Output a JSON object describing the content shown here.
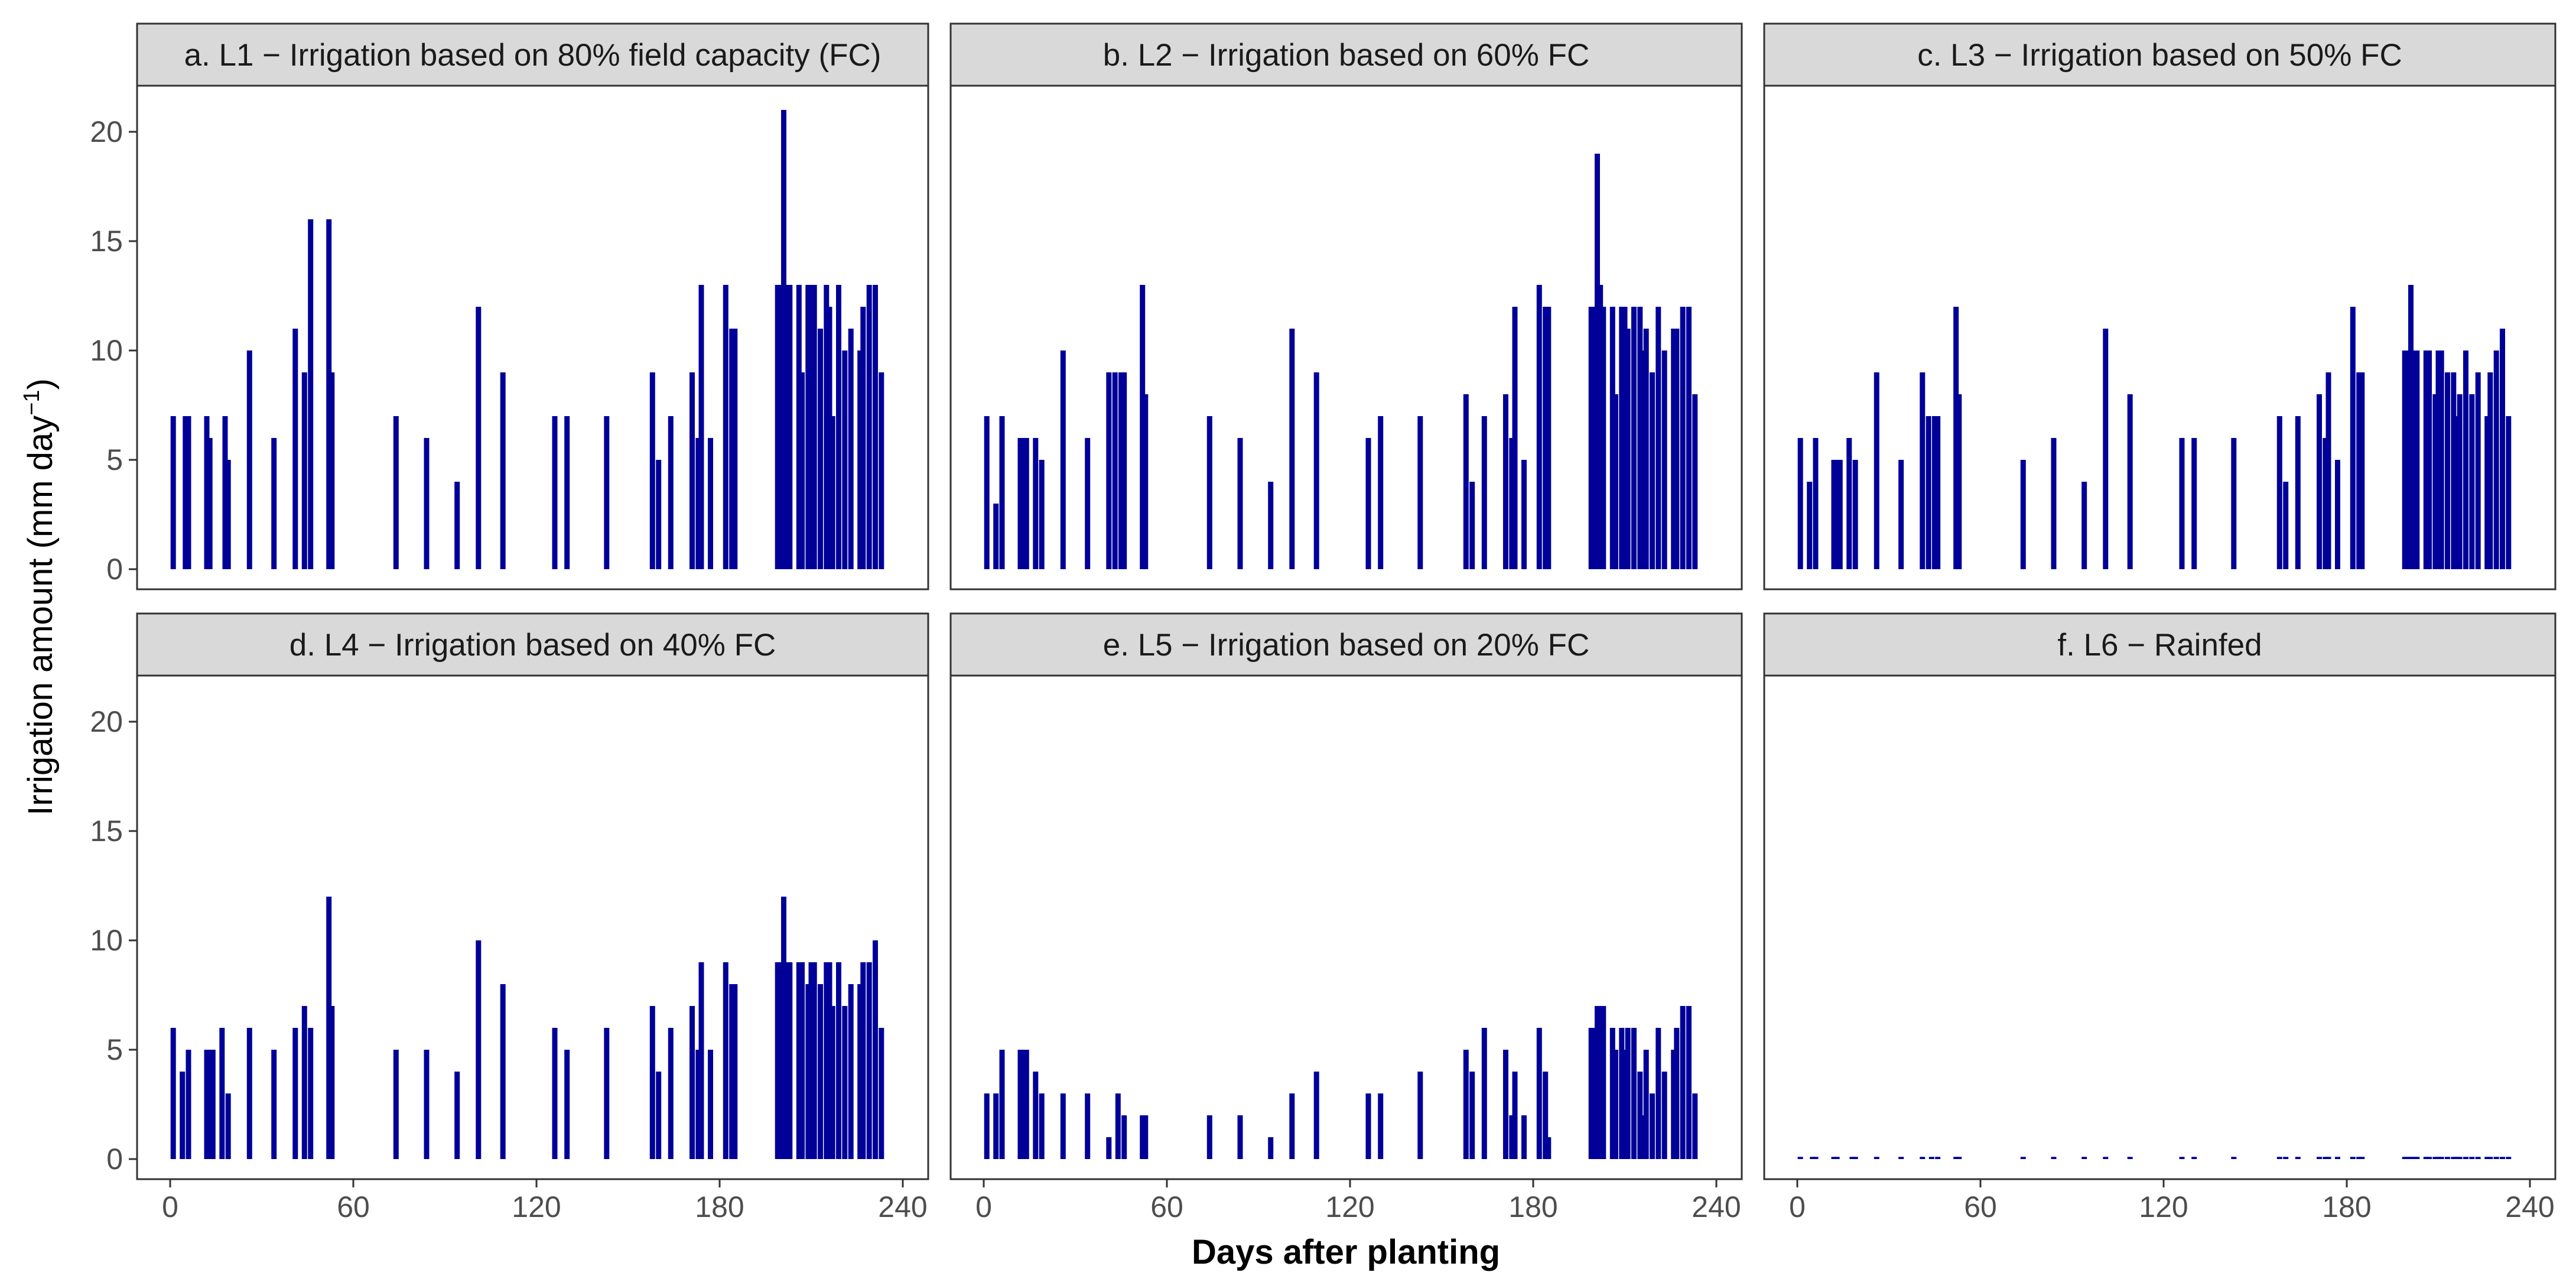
{
  "chart_data": {
    "type": "bar",
    "layout": "facet-grid 2x3",
    "xlabel": "Days after planting",
    "ylabel": "Irrigation amount (mm day",
    "ylabel_sup": "−1",
    "ylabel_end": ")",
    "xlim": [
      -7,
      245
    ],
    "ylim": [
      -1,
      22
    ],
    "xticks": [
      "0",
      "60",
      "120",
      "180",
      "240"
    ],
    "yticks": [
      "0",
      "5",
      "10",
      "15",
      "20"
    ],
    "bar_color": "#000099",
    "strip_fill": "#d9d9d9",
    "panels": [
      {
        "title": "a. L1 − Irrigation based on 80% field capacity (FC)",
        "days": [
          1,
          5,
          6,
          12,
          13,
          18,
          19,
          26,
          34,
          41,
          44,
          46,
          52,
          53,
          74,
          84,
          94,
          101,
          109,
          126,
          130,
          143,
          158,
          160,
          164,
          171,
          173,
          174,
          177,
          182,
          184,
          185,
          199,
          200,
          201,
          202,
          203,
          206,
          207,
          209,
          210,
          211,
          213,
          215,
          216,
          217,
          219,
          221,
          223,
          226,
          227,
          229,
          231,
          233
        ],
        "values": [
          7,
          7,
          7,
          7,
          6,
          7,
          5,
          10,
          6,
          11,
          9,
          16,
          16,
          9,
          7,
          6,
          4,
          12,
          9,
          7,
          7,
          7,
          9,
          5,
          7,
          9,
          6,
          13,
          6,
          13,
          11,
          11,
          13,
          13,
          21,
          13,
          13,
          13,
          9,
          13,
          13,
          13,
          11,
          13,
          12,
          7,
          13,
          10,
          11,
          10,
          12,
          13,
          13,
          9
        ]
      },
      {
        "title": "b. L2 − Irrigation based on 60% FC",
        "days": [
          1,
          4,
          6,
          12,
          13,
          14,
          17,
          19,
          26,
          34,
          41,
          43,
          45,
          46,
          52,
          53,
          74,
          84,
          94,
          101,
          109,
          126,
          130,
          143,
          158,
          160,
          164,
          171,
          173,
          174,
          177,
          182,
          184,
          185,
          199,
          200,
          201,
          202,
          203,
          206,
          207,
          209,
          210,
          211,
          213,
          215,
          216,
          217,
          219,
          221,
          223,
          226,
          227,
          229,
          231,
          233
        ],
        "values": [
          7,
          3,
          7,
          6,
          6,
          6,
          6,
          5,
          10,
          6,
          9,
          9,
          9,
          9,
          13,
          8,
          7,
          6,
          4,
          11,
          9,
          6,
          7,
          7,
          8,
          4,
          7,
          8,
          6,
          12,
          5,
          13,
          12,
          12,
          12,
          12,
          19,
          13,
          12,
          12,
          8,
          12,
          12,
          11,
          12,
          12,
          10,
          11,
          9,
          12,
          10,
          11,
          11,
          12,
          12,
          8
        ]
      },
      {
        "title": "c. L3 − Irrigation based on 50% FC",
        "days": [
          1,
          4,
          6,
          12,
          13,
          14,
          17,
          19,
          26,
          34,
          41,
          43,
          45,
          46,
          52,
          53,
          74,
          84,
          94,
          101,
          109,
          126,
          130,
          143,
          158,
          160,
          164,
          171,
          173,
          174,
          177,
          182,
          184,
          185,
          199,
          200,
          201,
          202,
          203,
          206,
          207,
          209,
          210,
          211,
          213,
          215,
          216,
          217,
          219,
          221,
          223,
          226,
          227,
          229,
          231,
          233
        ],
        "values": [
          6,
          4,
          6,
          5,
          5,
          5,
          6,
          5,
          9,
          5,
          9,
          7,
          7,
          7,
          12,
          8,
          5,
          6,
          4,
          11,
          8,
          6,
          6,
          6,
          7,
          4,
          7,
          8,
          6,
          9,
          5,
          12,
          9,
          9,
          10,
          10,
          13,
          10,
          10,
          10,
          10,
          8,
          10,
          10,
          9,
          9,
          7,
          8,
          10,
          8,
          9,
          7,
          9,
          10,
          11,
          7
        ]
      },
      {
        "title": "d. L4 − Irrigation based on 40% FC",
        "days": [
          1,
          4,
          6,
          12,
          13,
          14,
          17,
          19,
          26,
          34,
          41,
          44,
          46,
          52,
          53,
          74,
          84,
          94,
          101,
          109,
          126,
          130,
          143,
          158,
          160,
          164,
          171,
          173,
          174,
          177,
          182,
          184,
          185,
          199,
          200,
          201,
          202,
          203,
          206,
          207,
          209,
          210,
          211,
          213,
          215,
          216,
          217,
          219,
          221,
          223,
          226,
          227,
          229,
          231,
          233
        ],
        "values": [
          6,
          4,
          5,
          5,
          5,
          5,
          6,
          3,
          6,
          5,
          6,
          7,
          6,
          12,
          7,
          5,
          5,
          4,
          10,
          8,
          6,
          5,
          6,
          7,
          4,
          6,
          7,
          5,
          9,
          5,
          9,
          8,
          8,
          9,
          9,
          12,
          9,
          9,
          9,
          9,
          8,
          9,
          9,
          8,
          9,
          9,
          7,
          9,
          7,
          8,
          8,
          9,
          9,
          10,
          6
        ]
      },
      {
        "title": "e. L5 − Irrigation based on 20% FC",
        "days": [
          1,
          4,
          6,
          12,
          13,
          14,
          17,
          19,
          26,
          34,
          41,
          44,
          46,
          52,
          53,
          74,
          84,
          94,
          101,
          109,
          126,
          130,
          143,
          158,
          160,
          164,
          171,
          173,
          174,
          177,
          182,
          184,
          185,
          199,
          200,
          201,
          202,
          203,
          206,
          207,
          209,
          210,
          211,
          213,
          215,
          216,
          217,
          219,
          221,
          223,
          226,
          227,
          229,
          231,
          233
        ],
        "values": [
          3,
          3,
          5,
          5,
          5,
          5,
          4,
          3,
          3,
          3,
          1,
          3,
          2,
          2,
          2,
          2,
          2,
          1,
          3,
          4,
          3,
          3,
          4,
          5,
          4,
          6,
          5,
          2,
          4,
          2,
          6,
          4,
          1,
          6,
          6,
          7,
          7,
          7,
          6,
          5,
          6,
          5,
          6,
          6,
          4,
          2,
          5,
          3,
          6,
          4,
          5,
          6,
          7,
          7,
          3
        ]
      },
      {
        "title": "f. L6 − Rainfed",
        "days": [
          1,
          5,
          6,
          12,
          13,
          18,
          19,
          26,
          34,
          41,
          44,
          46,
          52,
          53,
          74,
          84,
          94,
          101,
          109,
          126,
          130,
          143,
          158,
          160,
          164,
          171,
          173,
          174,
          177,
          182,
          184,
          185,
          199,
          200,
          201,
          202,
          203,
          206,
          207,
          209,
          210,
          211,
          213,
          215,
          216,
          217,
          219,
          221,
          223,
          226,
          227,
          229,
          231,
          233
        ],
        "values": [
          0.1,
          0.1,
          0.1,
          0.1,
          0.1,
          0.1,
          0.1,
          0.1,
          0.1,
          0.1,
          0.1,
          0.1,
          0.1,
          0.1,
          0.1,
          0.1,
          0.1,
          0.1,
          0.1,
          0.1,
          0.1,
          0.1,
          0.1,
          0.1,
          0.1,
          0.1,
          0.1,
          0.1,
          0.1,
          0.1,
          0.1,
          0.1,
          0.1,
          0.1,
          0.1,
          0.1,
          0.1,
          0.1,
          0.1,
          0.1,
          0.1,
          0.1,
          0.1,
          0.1,
          0.1,
          0.1,
          0.1,
          0.1,
          0.1,
          0.1,
          0.1,
          0.1,
          0.1,
          0.1
        ]
      }
    ]
  }
}
